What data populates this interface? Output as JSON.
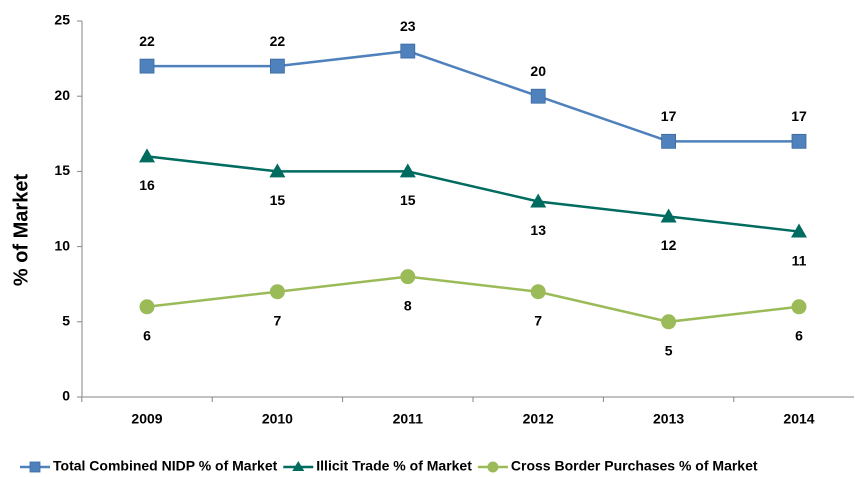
{
  "chart_data": {
    "type": "line",
    "y_label": "% of Market",
    "categories": [
      "2009",
      "2010",
      "2011",
      "2012",
      "2013",
      "2014"
    ],
    "series": [
      {
        "name": "Total Combined NIDP % of Market",
        "color": "#4f81bd",
        "marker": "square",
        "values": [
          22,
          22,
          23,
          20,
          17,
          17
        ]
      },
      {
        "name": "Illicit Trade % of Market",
        "color": "#006b5f",
        "marker": "triangle",
        "values": [
          16,
          15,
          15,
          13,
          12,
          11
        ]
      },
      {
        "name": "Cross Border Purchases % of Market",
        "color": "#9bbb59",
        "marker": "circle",
        "values": [
          6,
          7,
          8,
          7,
          5,
          6
        ]
      }
    ],
    "ylim": [
      0,
      25
    ],
    "yticks": [
      0,
      5,
      10,
      15,
      20,
      25
    ],
    "grid": false,
    "legend": "bottom"
  }
}
